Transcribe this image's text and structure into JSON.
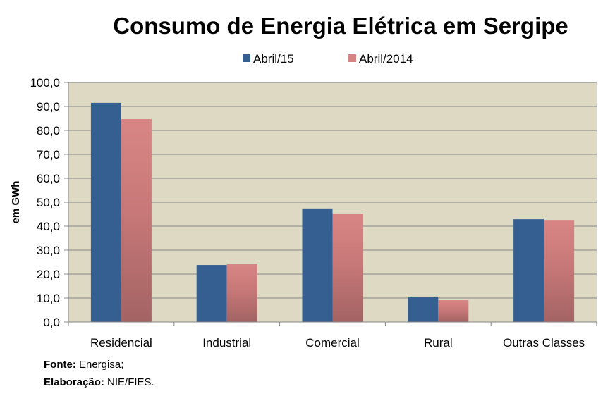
{
  "chart_data": {
    "type": "bar",
    "title": "Consumo de Energia Elétrica em Sergipe",
    "xlabel": "",
    "ylabel": "em GWh",
    "ylim": [
      0,
      100
    ],
    "yticks": [
      0,
      10,
      20,
      30,
      40,
      50,
      60,
      70,
      80,
      90,
      100
    ],
    "ytick_labels": [
      "0,0",
      "10,0",
      "20,0",
      "30,0",
      "40,0",
      "50,0",
      "60,0",
      "70,0",
      "80,0",
      "90,0",
      "100,0"
    ],
    "grid": true,
    "legend_position": "top-center",
    "categories": [
      "Residencial",
      "Industrial",
      "Comercial",
      "Rural",
      "Outras Classes"
    ],
    "series": [
      {
        "name": "Abril/15",
        "color": "#355F91",
        "values": [
          91.5,
          23.8,
          47.4,
          10.6,
          42.9
        ]
      },
      {
        "name": "Abril/2014",
        "color": "#D68383",
        "values": [
          84.7,
          24.4,
          45.3,
          9.1,
          42.6
        ]
      }
    ],
    "plot_background": "#DDD9C3",
    "gridline_color": "#868686"
  },
  "footer": {
    "source_label": "Fonte:",
    "source_value": " Energisa;",
    "credit_label": "Elaboração:",
    "credit_value": " NIE/FIES."
  }
}
